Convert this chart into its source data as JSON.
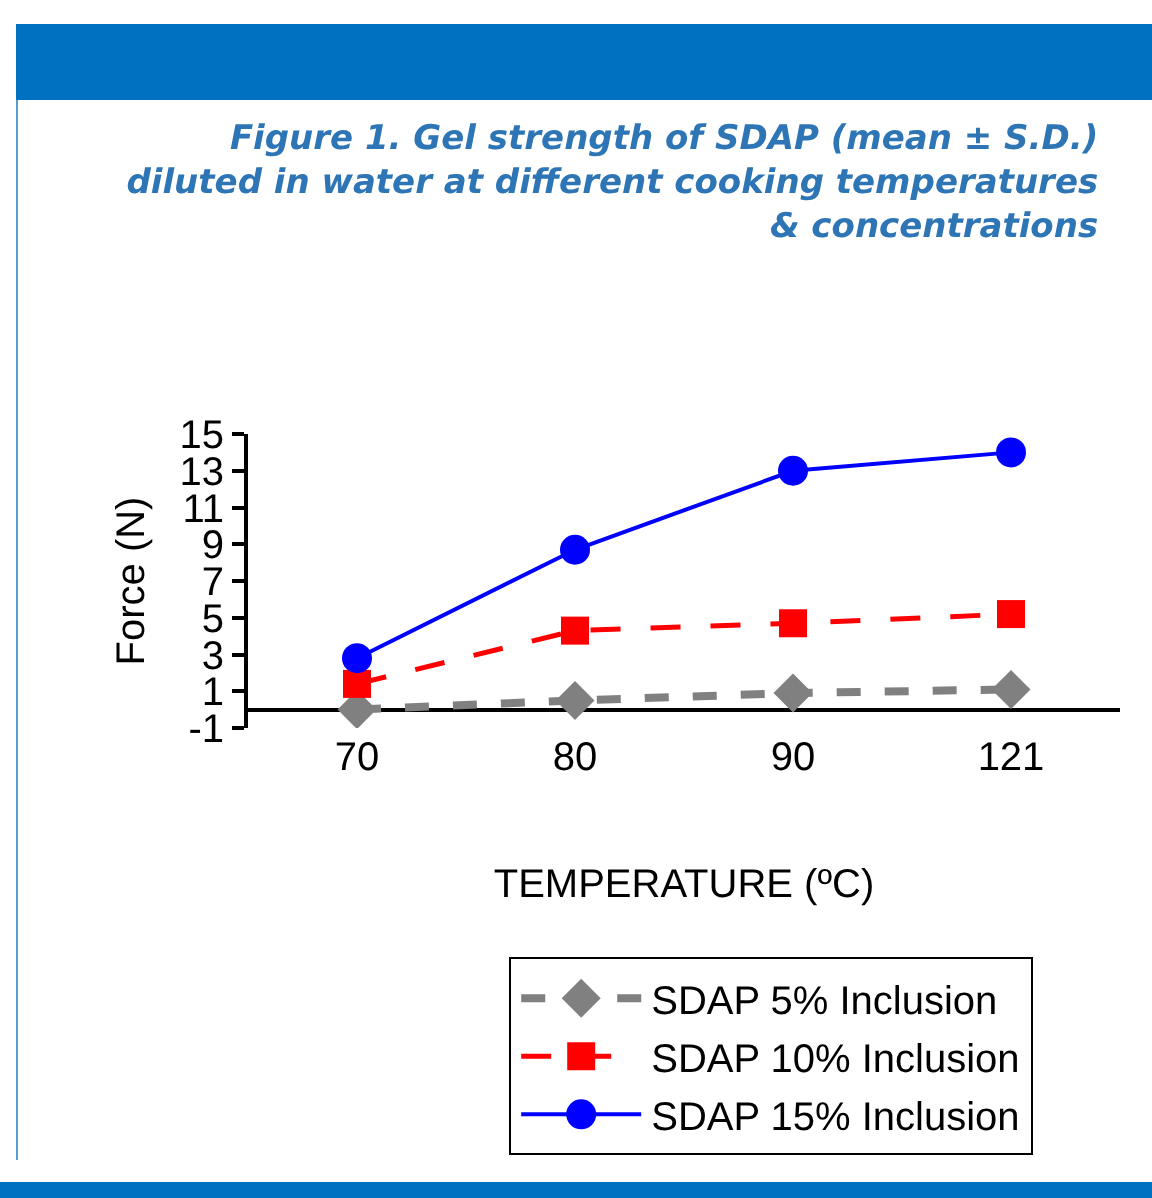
{
  "chart_data": {
    "type": "line",
    "title": "Figure 1. Gel strength of SDAP (mean ± S.D.)\ndiluted in water at different cooking temperatures\n& concentrations",
    "xlabel": "TEMPERATURE (ºC)",
    "ylabel": "Force (N)",
    "categories": [
      "70",
      "80",
      "90",
      "121"
    ],
    "series": [
      {
        "name": "SDAP 5% Inclusion",
        "color": "#808080",
        "values": [
          0.0,
          0.5,
          0.9,
          1.1
        ],
        "marker": "diamond",
        "line_style": "dashed"
      },
      {
        "name": "SDAP 10% Inclusion",
        "color": "#ff0000",
        "values": [
          1.4,
          4.3,
          4.7,
          5.2
        ],
        "marker": "square",
        "line_style": "dashed"
      },
      {
        "name": "SDAP 15% Inclusion",
        "color": "#0000ff",
        "values": [
          2.8,
          8.7,
          13.0,
          14.0
        ],
        "marker": "circle",
        "line_style": "solid"
      }
    ],
    "ylim": [
      -1,
      15
    ],
    "yticks": [
      -1,
      1,
      3,
      5,
      7,
      9,
      11,
      13,
      15
    ],
    "legend": "bottom"
  }
}
